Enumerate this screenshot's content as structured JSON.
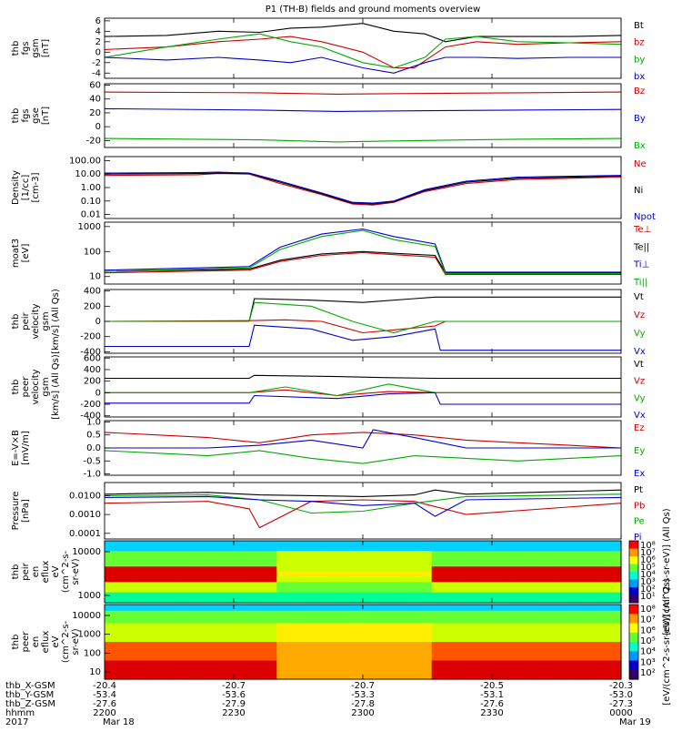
{
  "title": "P1 (TH-B) fields and ground moments overview",
  "year": "2017",
  "chart_data": [
    {
      "type": "line",
      "ylabel": [
        "thb",
        "fgs",
        "gsm",
        "[nT]"
      ],
      "yticks": [
        "6",
        "4",
        "2",
        "0",
        "-2",
        "-4"
      ],
      "ylim": [
        -5,
        6.5
      ],
      "series": [
        {
          "name": "Bt",
          "color": "#000000",
          "x": [
            0,
            0.12,
            0.22,
            0.3,
            0.36,
            0.42,
            0.5,
            0.56,
            0.62,
            0.66,
            0.72,
            0.8,
            0.9,
            1
          ],
          "values": [
            3,
            3.2,
            4,
            3.8,
            4.6,
            4.8,
            5.5,
            4,
            3.5,
            2,
            3,
            3,
            3,
            3.2
          ]
        },
        {
          "name": "bz",
          "color": "#cc0000",
          "x": [
            0,
            0.12,
            0.22,
            0.3,
            0.36,
            0.42,
            0.5,
            0.56,
            0.6,
            0.66,
            0.72,
            0.8,
            0.9,
            1
          ],
          "values": [
            0.5,
            1,
            2,
            2.5,
            3,
            2,
            0,
            -3,
            -3,
            1,
            2,
            1.5,
            1.8,
            2
          ]
        },
        {
          "name": "by",
          "color": "#00aa00",
          "x": [
            0,
            0.12,
            0.22,
            0.3,
            0.36,
            0.42,
            0.5,
            0.56,
            0.62,
            0.66,
            0.72,
            0.8,
            0.9,
            1
          ],
          "values": [
            -1,
            1,
            2.5,
            3.5,
            2,
            1,
            -2,
            -3,
            -1,
            2.5,
            3,
            2,
            1.8,
            1.5
          ]
        },
        {
          "name": "bx",
          "color": "#0000cc",
          "x": [
            0,
            0.12,
            0.22,
            0.3,
            0.36,
            0.42,
            0.5,
            0.56,
            0.62,
            0.66,
            0.72,
            0.8,
            0.9,
            1
          ],
          "values": [
            -1,
            -1.5,
            -1,
            -1.5,
            -2,
            -1,
            -3,
            -4,
            -2,
            -1,
            -1,
            -1.2,
            -1,
            -1
          ]
        }
      ]
    },
    {
      "type": "line",
      "ylabel": [
        "thb",
        "fgs",
        "gse",
        "[nT]"
      ],
      "yticks": [
        "60",
        "40",
        "20",
        "0",
        "-20"
      ],
      "ylim": [
        -30,
        62
      ],
      "series": [
        {
          "name": "Bz",
          "color": "#cc0000",
          "x": [
            0,
            0.3,
            0.45,
            0.6,
            0.8,
            1
          ],
          "values": [
            50,
            49,
            47,
            48,
            49,
            50
          ]
        },
        {
          "name": "By",
          "color": "#0000cc",
          "x": [
            0,
            0.3,
            0.45,
            0.6,
            0.8,
            1
          ],
          "values": [
            26,
            24,
            22,
            23,
            24,
            25
          ]
        },
        {
          "name": "Bx",
          "color": "#00aa00",
          "x": [
            0,
            0.3,
            0.45,
            0.6,
            0.8,
            1
          ],
          "values": [
            -17,
            -19,
            -22,
            -20,
            -18,
            -17
          ]
        }
      ]
    },
    {
      "type": "line",
      "log": true,
      "ylabel": [
        "Density",
        "[1/cc]",
        "[cm-3]"
      ],
      "yticks": [
        "100.00",
        "10.00",
        "1.00",
        "0.10",
        "0.01"
      ],
      "yvals": [
        100,
        10,
        1,
        0.1,
        0.01
      ],
      "ylim": [
        0.005,
        200
      ],
      "series": [
        {
          "name": "Ne",
          "color": "#cc0000",
          "x": [
            0,
            0.18,
            0.22,
            0.28,
            0.34,
            0.42,
            0.48,
            0.52,
            0.56,
            0.62,
            0.7,
            0.8,
            1
          ],
          "values": [
            8,
            9,
            11,
            10,
            2,
            0.3,
            0.06,
            0.05,
            0.08,
            0.5,
            2,
            4,
            6
          ]
        },
        {
          "name": "Ni",
          "color": "#000000",
          "x": [
            0,
            0.18,
            0.22,
            0.28,
            0.34,
            0.42,
            0.48,
            0.52,
            0.56,
            0.62,
            0.7,
            0.8,
            1
          ],
          "values": [
            10,
            11,
            12,
            11,
            2.5,
            0.35,
            0.07,
            0.06,
            0.09,
            0.6,
            2.5,
            5,
            7
          ]
        },
        {
          "name": "Npot",
          "color": "#0000cc",
          "x": [
            0,
            0.18,
            0.22,
            0.28,
            0.34,
            0.42,
            0.48,
            0.52,
            0.56,
            0.62,
            0.7,
            0.8,
            1
          ],
          "values": [
            12,
            13,
            14,
            12,
            3,
            0.4,
            0.08,
            0.07,
            0.1,
            0.7,
            3,
            6,
            8
          ]
        }
      ]
    },
    {
      "type": "line",
      "log": true,
      "ylabel": [
        "moat3",
        "[eV]"
      ],
      "yticks": [
        "1000",
        "100",
        "10"
      ],
      "yvals": [
        1000,
        100,
        10
      ],
      "ylim": [
        5,
        1500
      ],
      "series": [
        {
          "name": "Te⊥",
          "color": "#cc0000",
          "x": [
            0,
            0.28,
            0.34,
            0.42,
            0.5,
            0.56,
            0.64,
            0.66,
            1
          ],
          "values": [
            14,
            18,
            40,
            70,
            90,
            75,
            60,
            12,
            12
          ]
        },
        {
          "name": "Te||",
          "color": "#000000",
          "x": [
            0,
            0.28,
            0.34,
            0.42,
            0.5,
            0.56,
            0.64,
            0.66,
            1
          ],
          "values": [
            16,
            20,
            45,
            80,
            100,
            85,
            70,
            14,
            14
          ]
        },
        {
          "name": "Ti⊥",
          "color": "#0000cc",
          "x": [
            0,
            0.28,
            0.34,
            0.42,
            0.5,
            0.56,
            0.64,
            0.66,
            1
          ],
          "values": [
            18,
            25,
            150,
            500,
            800,
            400,
            200,
            15,
            15
          ]
        },
        {
          "name": "Ti||",
          "color": "#00aa00",
          "x": [
            0,
            0.28,
            0.34,
            0.42,
            0.5,
            0.56,
            0.64,
            0.66,
            1
          ],
          "values": [
            16,
            22,
            120,
            400,
            700,
            300,
            160,
            13,
            13
          ]
        }
      ]
    },
    {
      "type": "line",
      "ylabel": [
        "thb",
        "peir",
        "velocity",
        "gsm",
        "[km/s] (All Qs)"
      ],
      "yticks": [
        "400",
        "200",
        "0",
        "-200",
        "-400"
      ],
      "ylim": [
        -420,
        420
      ],
      "series": [
        {
          "name": "Vt",
          "color": "#000000",
          "x": [
            0,
            0.28,
            0.29,
            0.4,
            0.5,
            0.6,
            0.64,
            0.65,
            1
          ],
          "values": [
            0,
            0,
            300,
            280,
            250,
            300,
            320,
            320,
            320
          ]
        },
        {
          "name": "Vz",
          "color": "#cc0000",
          "x": [
            0,
            0.28,
            0.35,
            0.42,
            0.5,
            0.58,
            0.64,
            0.66,
            1
          ],
          "values": [
            0,
            10,
            20,
            0,
            -150,
            -100,
            -60,
            0,
            0
          ]
        },
        {
          "name": "Vy",
          "color": "#00aa00",
          "x": [
            0,
            0.28,
            0.29,
            0.4,
            0.48,
            0.56,
            0.64,
            0.65,
            1
          ],
          "values": [
            0,
            0,
            250,
            200,
            0,
            -150,
            0,
            0,
            0
          ]
        },
        {
          "name": "Vx",
          "color": "#0000cc",
          "x": [
            0,
            0.28,
            0.29,
            0.4,
            0.48,
            0.56,
            0.64,
            0.65,
            1
          ],
          "values": [
            -330,
            -330,
            -50,
            -100,
            -250,
            -200,
            -100,
            -380,
            -380
          ]
        }
      ]
    },
    {
      "type": "line",
      "ylabel": [
        "thb",
        "peer",
        "velocity",
        "gsm",
        "[km/s] (All Qs)"
      ],
      "yticks": [
        "600",
        "400",
        "200",
        "0",
        "-200",
        "-400"
      ],
      "ylim": [
        -420,
        620
      ],
      "series": [
        {
          "name": "Vt",
          "color": "#000000",
          "x": [
            0,
            0.28,
            0.29,
            0.45,
            0.55,
            0.64,
            0.65,
            1
          ],
          "values": [
            250,
            250,
            300,
            280,
            260,
            250,
            250,
            250
          ]
        },
        {
          "name": "Vz",
          "color": "#cc0000",
          "x": [
            0,
            0.28,
            0.35,
            0.45,
            0.55,
            0.64,
            1
          ],
          "values": [
            0,
            0,
            50,
            -50,
            20,
            0,
            0
          ]
        },
        {
          "name": "Vy",
          "color": "#00aa00",
          "x": [
            0,
            0.28,
            0.35,
            0.45,
            0.55,
            0.64,
            1
          ],
          "values": [
            0,
            0,
            100,
            -50,
            150,
            0,
            0
          ]
        },
        {
          "name": "Vx",
          "color": "#0000cc",
          "x": [
            0,
            0.28,
            0.29,
            0.45,
            0.55,
            0.64,
            0.65,
            1
          ],
          "values": [
            -180,
            -180,
            -50,
            -100,
            -20,
            0,
            -200,
            -200
          ]
        }
      ]
    },
    {
      "type": "line",
      "ylabel": [
        "E=-V×B",
        "[mV/m]"
      ],
      "yticks": [
        "1.0",
        "0.5",
        "0.0",
        "-0.5",
        "-1.0"
      ],
      "ylim": [
        -1.05,
        1.05
      ],
      "series": [
        {
          "name": "Ez",
          "color": "#cc0000",
          "x": [
            0,
            0.1,
            0.2,
            0.3,
            0.4,
            0.5,
            0.6,
            0.7,
            0.8,
            0.9,
            1
          ],
          "values": [
            0.6,
            0.5,
            0.4,
            0.2,
            0.5,
            0.6,
            0.5,
            0.3,
            0.2,
            0.1,
            0.0
          ]
        },
        {
          "name": "Ey",
          "color": "#00aa00",
          "x": [
            0,
            0.1,
            0.2,
            0.3,
            0.4,
            0.5,
            0.6,
            0.7,
            0.8,
            0.9,
            1
          ],
          "values": [
            -0.1,
            -0.2,
            -0.3,
            -0.1,
            -0.4,
            -0.6,
            -0.3,
            -0.4,
            -0.5,
            -0.4,
            -0.3
          ]
        },
        {
          "name": "Ex",
          "color": "#0000cc",
          "x": [
            0,
            0.1,
            0.2,
            0.3,
            0.4,
            0.5,
            0.52,
            0.6,
            0.7,
            0.8,
            1
          ],
          "values": [
            0,
            0,
            0,
            0.1,
            0.3,
            0.0,
            0.7,
            0.4,
            0.0,
            0.0,
            0.0
          ]
        }
      ]
    },
    {
      "type": "line",
      "log": true,
      "ylabel": [
        "Pressure",
        "[nPa]"
      ],
      "yticks": [
        "0.0100",
        "0.0010",
        "0.0001"
      ],
      "yvals": [
        0.01,
        0.001,
        0.0001
      ],
      "ylim": [
        5e-05,
        0.05
      ],
      "series": [
        {
          "name": "Pt",
          "color": "#000000",
          "x": [
            0,
            0.2,
            0.3,
            0.4,
            0.5,
            0.6,
            0.64,
            0.7,
            1
          ],
          "values": [
            0.012,
            0.015,
            0.011,
            0.01,
            0.009,
            0.011,
            0.02,
            0.012,
            0.02
          ]
        },
        {
          "name": "Pb",
          "color": "#cc0000",
          "x": [
            0,
            0.2,
            0.28,
            0.3,
            0.4,
            0.5,
            0.6,
            0.7,
            1
          ],
          "values": [
            0.004,
            0.005,
            0.002,
            0.0002,
            0.005,
            0.006,
            0.005,
            0.001,
            0.004
          ]
        },
        {
          "name": "Pe",
          "color": "#00aa00",
          "x": [
            0,
            0.2,
            0.3,
            0.4,
            0.5,
            0.6,
            0.7,
            1
          ],
          "values": [
            0.01,
            0.011,
            0.006,
            0.0012,
            0.0015,
            0.004,
            0.009,
            0.012
          ]
        },
        {
          "name": "Pi",
          "color": "#0000cc",
          "x": [
            0,
            0.2,
            0.3,
            0.4,
            0.5,
            0.6,
            0.64,
            0.7,
            1
          ],
          "values": [
            0.008,
            0.009,
            0.006,
            0.005,
            0.003,
            0.004,
            0.0008,
            0.006,
            0.008
          ]
        }
      ]
    },
    {
      "type": "heatmap",
      "ylabel": [
        "thb",
        "peir",
        "en",
        "eflux",
        "eV",
        "(cm^2-s-",
        "sr-eV)"
      ],
      "yticks": [
        "10000",
        "1000"
      ],
      "cbar_label": "[eV/(cm^2-s-sr-eV)] (All Qs)",
      "cbar_ticks": [
        "10⁸",
        "10⁷",
        "10⁶",
        "10⁵",
        "10⁴",
        "10³",
        "10²",
        "10¹"
      ]
    },
    {
      "type": "heatmap",
      "ylabel": [
        "thb",
        "peer",
        "en",
        "eflux",
        "eV",
        "(cm^2-s-",
        "sr-eV)"
      ],
      "yticks": [
        "10000",
        "1000",
        "100",
        "10"
      ],
      "cbar_label": "[eV/(cm^2-s-sr-eV)] (All Qs)",
      "cbar_ticks": [
        "10⁸",
        "10⁷",
        "10⁶",
        "10⁵",
        "10⁴",
        "10³",
        "10²"
      ]
    }
  ],
  "xaxis": {
    "row_labels": [
      "thb_X-GSM",
      "thb_Y-GSM",
      "thb_Z-GSM",
      "hhmm",
      "2017"
    ],
    "ticks": [
      {
        "vals": [
          "-20.4",
          "-53.4",
          "-27.6",
          "2200",
          "Mar 18"
        ]
      },
      {
        "vals": [
          "-20.7",
          "-53.6",
          "-27.9",
          "2230",
          ""
        ]
      },
      {
        "vals": [
          "-20.7",
          "-53.3",
          "-27.8",
          "2300",
          ""
        ]
      },
      {
        "vals": [
          "-20.5",
          "-53.1",
          "-27.6",
          "2330",
          ""
        ]
      },
      {
        "vals": [
          "-20.3",
          "-53.0",
          "-27.3",
          "0000",
          "Mar 19"
        ]
      }
    ]
  }
}
